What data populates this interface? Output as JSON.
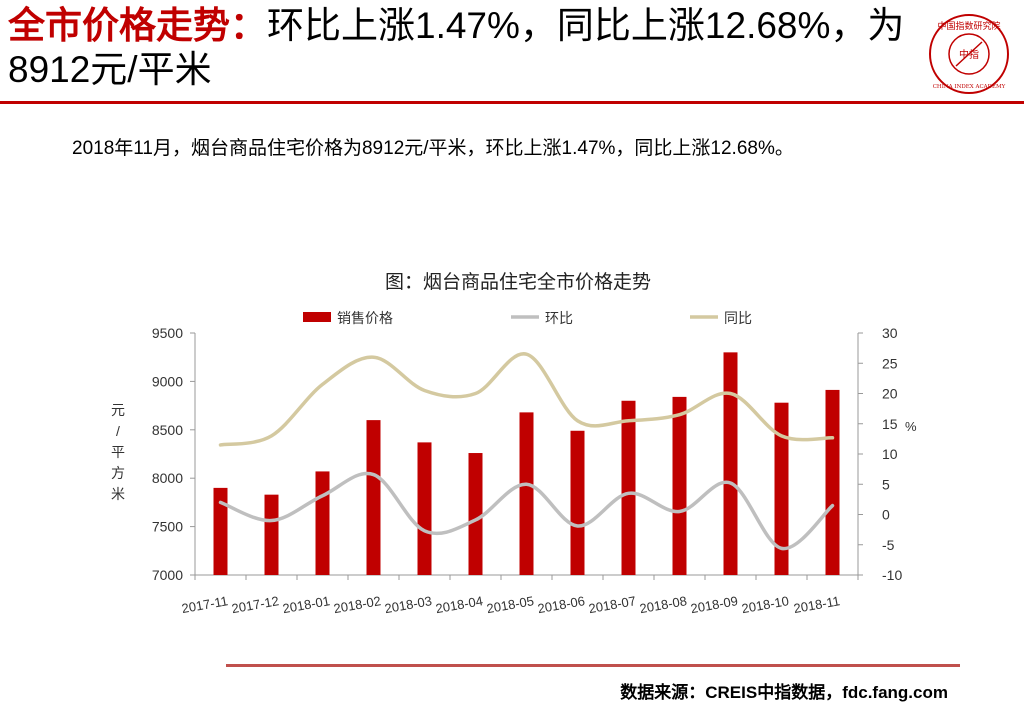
{
  "header": {
    "title_highlight": "全市价格走势：",
    "title_rest": "环比上涨1.47%，同比上涨12.68%，为8912元/平米"
  },
  "logo": {
    "top_text": "中国指数研究院",
    "center_text": "中指",
    "ring_text": "CHINA INDEX ACADEMY"
  },
  "summary": "2018年11月，烟台商品住宅价格为8912元/平米，环比上涨1.47%，同比上涨12.68%。",
  "chart_data": {
    "type": "bar",
    "title": "图：烟台商品住宅全市价格走势",
    "categories": [
      "2017-11",
      "2017-12",
      "2018-01",
      "2018-02",
      "2018-03",
      "2018-04",
      "2018-05",
      "2018-06",
      "2018-07",
      "2018-08",
      "2018-09",
      "2018-10",
      "2018-11"
    ],
    "series": [
      {
        "name": "销售价格",
        "type": "bar",
        "axis": "left",
        "color": "#c00000",
        "values": [
          7900,
          7830,
          8070,
          8600,
          8370,
          8260,
          8680,
          8490,
          8800,
          8840,
          9300,
          8780,
          8912
        ]
      },
      {
        "name": "环比",
        "type": "line",
        "axis": "right",
        "color": "#bfbfbf",
        "values": [
          2.0,
          -1.0,
          3.1,
          6.6,
          -2.7,
          -0.9,
          5.0,
          -1.9,
          3.5,
          0.5,
          5.2,
          -5.6,
          1.47
        ]
      },
      {
        "name": "同比",
        "type": "line",
        "axis": "right",
        "color": "#d4c9a0",
        "values": [
          11.5,
          13.0,
          21.5,
          26.0,
          20.5,
          20.0,
          26.5,
          15.5,
          15.5,
          16.5,
          20.0,
          13.0,
          12.68
        ]
      }
    ],
    "y_left": {
      "label": "元/平方米",
      "min": 7000,
      "max": 9500,
      "ticks": [
        "7000",
        "7500",
        "8000",
        "8500",
        "9000",
        "9500"
      ]
    },
    "y_right": {
      "label": "%",
      "min": -10,
      "max": 30,
      "ticks": [
        "-10",
        "-5",
        "0",
        "5",
        "10",
        "15",
        "20",
        "25",
        "30"
      ]
    },
    "legend_position": "top"
  },
  "source": "数据来源：CREIS中指数据，fdc.fang.com"
}
